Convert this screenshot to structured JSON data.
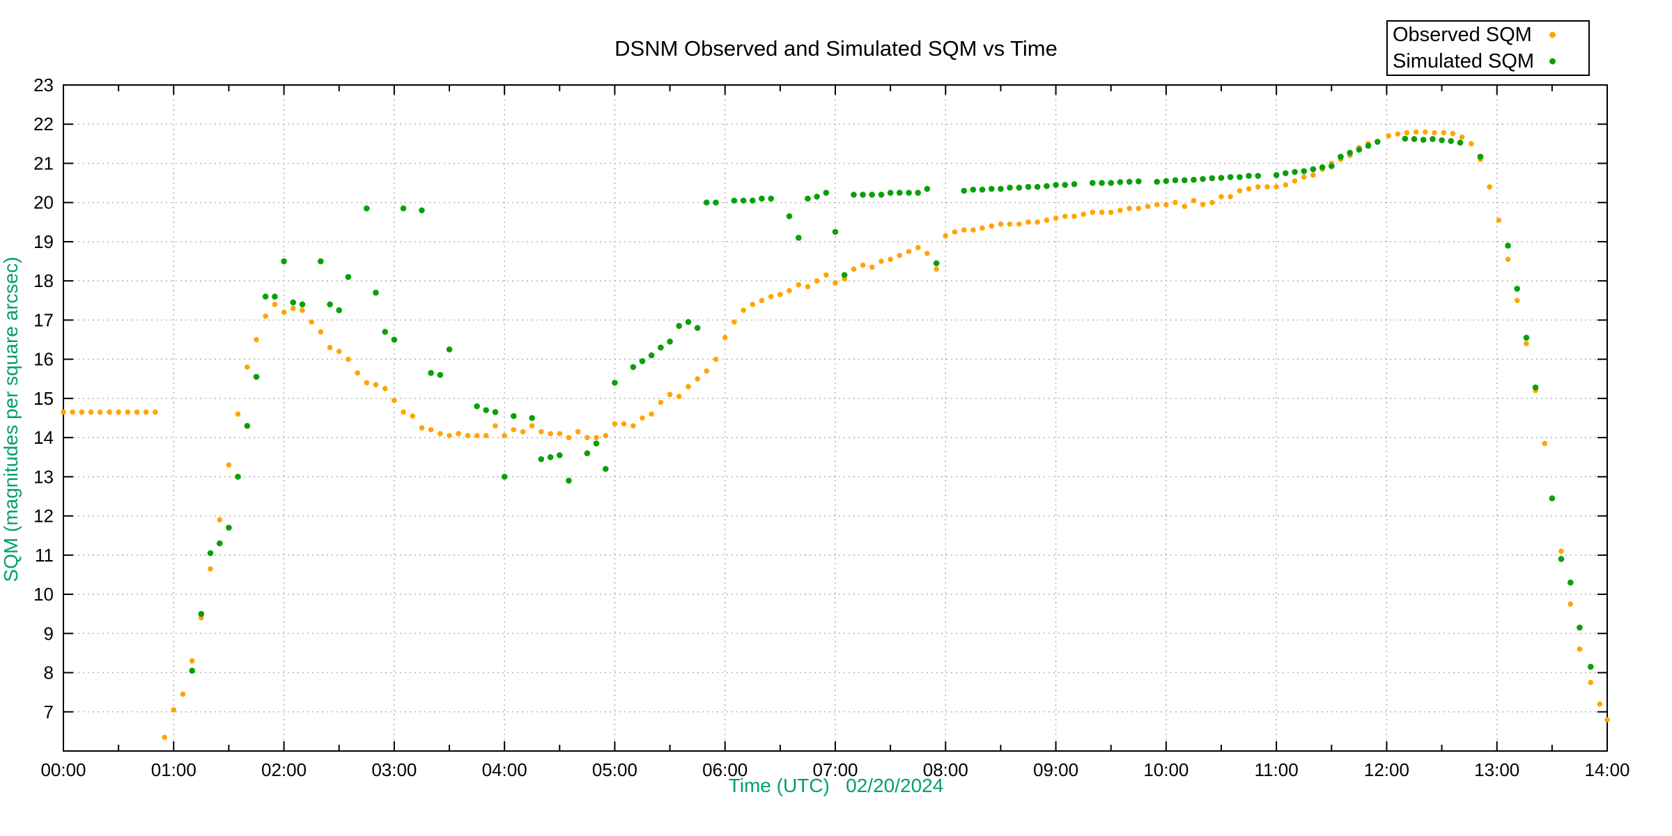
{
  "chart_data": {
    "type": "scatter",
    "title": "DSNM Observed and Simulated SQM vs Time",
    "xlabel": "Time (UTC)   02/20/2024",
    "ylabel": "SQM (magnitudes per square arcsec)",
    "axis_label_color": "#009e73",
    "tick_label_color": "#000000",
    "grid": true,
    "grid_color": "#b3b3b3",
    "xlim_hours": [
      0,
      14
    ],
    "ylim": [
      6,
      23
    ],
    "x_tick_labels": [
      "00:00",
      "01:00",
      "02:00",
      "03:00",
      "04:00",
      "05:00",
      "06:00",
      "07:00",
      "08:00",
      "09:00",
      "10:00",
      "11:00",
      "12:00",
      "13:00",
      "14:00"
    ],
    "x_minor_tick_hours": 0.5,
    "y_ticks": [
      7,
      8,
      9,
      10,
      11,
      12,
      13,
      14,
      15,
      16,
      17,
      18,
      19,
      20,
      21,
      22,
      23
    ],
    "legend_position": "top-right",
    "series": [
      {
        "name": "Observed SQM",
        "color": "#ffa500",
        "marker": "dot",
        "points": [
          [
            0.0,
            14.65
          ],
          [
            0.083,
            14.65
          ],
          [
            0.167,
            14.65
          ],
          [
            0.25,
            14.65
          ],
          [
            0.333,
            14.65
          ],
          [
            0.417,
            14.65
          ],
          [
            0.5,
            14.65
          ],
          [
            0.583,
            14.65
          ],
          [
            0.667,
            14.65
          ],
          [
            0.75,
            14.65
          ],
          [
            0.833,
            14.65
          ],
          [
            0.917,
            6.35
          ],
          [
            1.0,
            7.05
          ],
          [
            1.083,
            7.45
          ],
          [
            1.167,
            8.3
          ],
          [
            1.25,
            9.4
          ],
          [
            1.333,
            10.65
          ],
          [
            1.417,
            11.9
          ],
          [
            1.5,
            13.3
          ],
          [
            1.583,
            14.6
          ],
          [
            1.667,
            15.8
          ],
          [
            1.75,
            16.5
          ],
          [
            1.833,
            17.1
          ],
          [
            1.917,
            17.4
          ],
          [
            2.0,
            17.2
          ],
          [
            2.083,
            17.3
          ],
          [
            2.167,
            17.25
          ],
          [
            2.25,
            16.95
          ],
          [
            2.333,
            16.7
          ],
          [
            2.417,
            16.3
          ],
          [
            2.5,
            16.2
          ],
          [
            2.583,
            16.0
          ],
          [
            2.667,
            15.65
          ],
          [
            2.75,
            15.4
          ],
          [
            2.833,
            15.35
          ],
          [
            2.917,
            15.25
          ],
          [
            3.0,
            14.95
          ],
          [
            3.083,
            14.65
          ],
          [
            3.167,
            14.55
          ],
          [
            3.25,
            14.25
          ],
          [
            3.333,
            14.2
          ],
          [
            3.417,
            14.1
          ],
          [
            3.5,
            14.05
          ],
          [
            3.583,
            14.1
          ],
          [
            3.667,
            14.05
          ],
          [
            3.75,
            14.05
          ],
          [
            3.833,
            14.05
          ],
          [
            3.917,
            14.3
          ],
          [
            4.0,
            14.05
          ],
          [
            4.083,
            14.2
          ],
          [
            4.167,
            14.15
          ],
          [
            4.25,
            14.3
          ],
          [
            4.333,
            14.15
          ],
          [
            4.417,
            14.1
          ],
          [
            4.5,
            14.1
          ],
          [
            4.583,
            14.0
          ],
          [
            4.667,
            14.15
          ],
          [
            4.75,
            14.0
          ],
          [
            4.833,
            14.0
          ],
          [
            4.917,
            14.05
          ],
          [
            5.0,
            14.35
          ],
          [
            5.083,
            14.35
          ],
          [
            5.167,
            14.3
          ],
          [
            5.25,
            14.5
          ],
          [
            5.333,
            14.6
          ],
          [
            5.417,
            14.9
          ],
          [
            5.5,
            15.1
          ],
          [
            5.583,
            15.05
          ],
          [
            5.667,
            15.3
          ],
          [
            5.75,
            15.5
          ],
          [
            5.833,
            15.7
          ],
          [
            5.917,
            16.0
          ],
          [
            6.0,
            16.55
          ],
          [
            6.083,
            16.95
          ],
          [
            6.167,
            17.25
          ],
          [
            6.25,
            17.4
          ],
          [
            6.333,
            17.5
          ],
          [
            6.417,
            17.6
          ],
          [
            6.5,
            17.65
          ],
          [
            6.583,
            17.75
          ],
          [
            6.667,
            17.9
          ],
          [
            6.75,
            17.85
          ],
          [
            6.833,
            18.0
          ],
          [
            6.917,
            18.15
          ],
          [
            7.0,
            17.95
          ],
          [
            7.083,
            18.05
          ],
          [
            7.167,
            18.3
          ],
          [
            7.25,
            18.4
          ],
          [
            7.333,
            18.35
          ],
          [
            7.417,
            18.5
          ],
          [
            7.5,
            18.55
          ],
          [
            7.583,
            18.65
          ],
          [
            7.667,
            18.75
          ],
          [
            7.75,
            18.85
          ],
          [
            7.833,
            18.7
          ],
          [
            7.917,
            18.3
          ],
          [
            8.0,
            19.15
          ],
          [
            8.083,
            19.25
          ],
          [
            8.167,
            19.3
          ],
          [
            8.25,
            19.3
          ],
          [
            8.333,
            19.35
          ],
          [
            8.417,
            19.4
          ],
          [
            8.5,
            19.45
          ],
          [
            8.583,
            19.45
          ],
          [
            8.667,
            19.45
          ],
          [
            8.75,
            19.5
          ],
          [
            8.833,
            19.5
          ],
          [
            8.917,
            19.55
          ],
          [
            9.0,
            19.6
          ],
          [
            9.083,
            19.65
          ],
          [
            9.167,
            19.65
          ],
          [
            9.25,
            19.7
          ],
          [
            9.333,
            19.75
          ],
          [
            9.417,
            19.75
          ],
          [
            9.5,
            19.75
          ],
          [
            9.583,
            19.8
          ],
          [
            9.667,
            19.85
          ],
          [
            9.75,
            19.85
          ],
          [
            9.833,
            19.9
          ],
          [
            9.917,
            19.95
          ],
          [
            10.0,
            19.95
          ],
          [
            10.083,
            20.0
          ],
          [
            10.167,
            19.9
          ],
          [
            10.25,
            20.05
          ],
          [
            10.333,
            19.95
          ],
          [
            10.417,
            20.0
          ],
          [
            10.5,
            20.15
          ],
          [
            10.583,
            20.15
          ],
          [
            10.667,
            20.3
          ],
          [
            10.75,
            20.35
          ],
          [
            10.833,
            20.4
          ],
          [
            10.917,
            20.4
          ],
          [
            11.0,
            20.4
          ],
          [
            11.083,
            20.45
          ],
          [
            11.167,
            20.55
          ],
          [
            11.25,
            20.65
          ],
          [
            11.333,
            20.7
          ],
          [
            11.417,
            20.85
          ],
          [
            11.5,
            21.0
          ],
          [
            11.583,
            21.1
          ],
          [
            11.667,
            21.2
          ],
          [
            11.75,
            21.4
          ],
          [
            11.833,
            21.5
          ],
          [
            12.017,
            21.7
          ],
          [
            12.1,
            21.75
          ],
          [
            12.183,
            21.78
          ],
          [
            12.267,
            21.8
          ],
          [
            12.35,
            21.8
          ],
          [
            12.433,
            21.78
          ],
          [
            12.517,
            21.78
          ],
          [
            12.6,
            21.76
          ],
          [
            12.683,
            21.67
          ],
          [
            12.767,
            21.5
          ],
          [
            12.85,
            21.1
          ],
          [
            12.933,
            20.4
          ],
          [
            13.017,
            19.55
          ],
          [
            13.1,
            18.55
          ],
          [
            13.183,
            17.5
          ],
          [
            13.267,
            16.4
          ],
          [
            13.35,
            15.2
          ],
          [
            13.433,
            13.85
          ],
          [
            13.583,
            11.1
          ],
          [
            13.667,
            9.75
          ],
          [
            13.75,
            8.6
          ],
          [
            13.85,
            7.75
          ],
          [
            13.933,
            7.2
          ],
          [
            14.0,
            6.8
          ]
        ]
      },
      {
        "name": "Simulated SQM",
        "color": "#0aa00a",
        "marker": "dot",
        "points": [
          [
            1.167,
            8.05
          ],
          [
            1.25,
            9.5
          ],
          [
            1.333,
            11.05
          ],
          [
            1.417,
            11.3
          ],
          [
            1.5,
            11.7
          ],
          [
            1.583,
            13.0
          ],
          [
            1.667,
            14.3
          ],
          [
            1.75,
            15.55
          ],
          [
            1.833,
            17.6
          ],
          [
            1.917,
            17.6
          ],
          [
            2.0,
            18.5
          ],
          [
            2.083,
            17.45
          ],
          [
            2.167,
            17.4
          ],
          [
            2.333,
            18.5
          ],
          [
            2.417,
            17.4
          ],
          [
            2.5,
            17.25
          ],
          [
            2.583,
            18.1
          ],
          [
            2.75,
            19.85
          ],
          [
            2.833,
            17.7
          ],
          [
            2.917,
            16.7
          ],
          [
            3.0,
            16.5
          ],
          [
            3.083,
            19.85
          ],
          [
            3.25,
            19.8
          ],
          [
            3.333,
            15.65
          ],
          [
            3.417,
            15.6
          ],
          [
            3.5,
            16.25
          ],
          [
            3.75,
            14.8
          ],
          [
            3.833,
            14.7
          ],
          [
            3.917,
            14.65
          ],
          [
            4.0,
            13.0
          ],
          [
            4.083,
            14.55
          ],
          [
            4.25,
            14.5
          ],
          [
            4.333,
            13.45
          ],
          [
            4.417,
            13.5
          ],
          [
            4.5,
            13.55
          ],
          [
            4.583,
            12.9
          ],
          [
            4.75,
            13.6
          ],
          [
            4.833,
            13.85
          ],
          [
            4.917,
            13.2
          ],
          [
            5.0,
            15.4
          ],
          [
            5.167,
            15.8
          ],
          [
            5.25,
            15.95
          ],
          [
            5.333,
            16.1
          ],
          [
            5.417,
            16.3
          ],
          [
            5.5,
            16.45
          ],
          [
            5.583,
            16.85
          ],
          [
            5.667,
            16.95
          ],
          [
            5.75,
            16.8
          ],
          [
            5.833,
            20.0
          ],
          [
            5.917,
            20.0
          ],
          [
            6.083,
            20.05
          ],
          [
            6.167,
            20.05
          ],
          [
            6.25,
            20.05
          ],
          [
            6.333,
            20.1
          ],
          [
            6.417,
            20.1
          ],
          [
            6.583,
            19.65
          ],
          [
            6.667,
            19.1
          ],
          [
            6.75,
            20.1
          ],
          [
            6.833,
            20.15
          ],
          [
            6.917,
            20.25
          ],
          [
            7.0,
            19.25
          ],
          [
            7.083,
            18.15
          ],
          [
            7.167,
            20.2
          ],
          [
            7.25,
            20.2
          ],
          [
            7.333,
            20.2
          ],
          [
            7.417,
            20.2
          ],
          [
            7.5,
            20.25
          ],
          [
            7.583,
            20.25
          ],
          [
            7.667,
            20.25
          ],
          [
            7.75,
            20.25
          ],
          [
            7.833,
            20.35
          ],
          [
            7.917,
            18.45
          ],
          [
            8.167,
            20.3
          ],
          [
            8.25,
            20.33
          ],
          [
            8.333,
            20.33
          ],
          [
            8.417,
            20.35
          ],
          [
            8.5,
            20.35
          ],
          [
            8.583,
            20.38
          ],
          [
            8.667,
            20.38
          ],
          [
            8.75,
            20.4
          ],
          [
            8.833,
            20.4
          ],
          [
            8.917,
            20.42
          ],
          [
            9.0,
            20.45
          ],
          [
            9.083,
            20.45
          ],
          [
            9.167,
            20.47
          ],
          [
            9.333,
            20.5
          ],
          [
            9.417,
            20.5
          ],
          [
            9.5,
            20.5
          ],
          [
            9.583,
            20.52
          ],
          [
            9.667,
            20.53
          ],
          [
            9.75,
            20.54
          ],
          [
            9.917,
            20.53
          ],
          [
            10.0,
            20.55
          ],
          [
            10.083,
            20.57
          ],
          [
            10.167,
            20.57
          ],
          [
            10.25,
            20.58
          ],
          [
            10.333,
            20.6
          ],
          [
            10.417,
            20.62
          ],
          [
            10.5,
            20.63
          ],
          [
            10.583,
            20.65
          ],
          [
            10.667,
            20.65
          ],
          [
            10.75,
            20.68
          ],
          [
            10.833,
            20.68
          ],
          [
            11.0,
            20.7
          ],
          [
            11.083,
            20.75
          ],
          [
            11.167,
            20.78
          ],
          [
            11.25,
            20.8
          ],
          [
            11.333,
            20.85
          ],
          [
            11.417,
            20.9
          ],
          [
            11.5,
            20.93
          ],
          [
            11.583,
            21.17
          ],
          [
            11.667,
            21.27
          ],
          [
            11.75,
            21.35
          ],
          [
            11.833,
            21.45
          ],
          [
            11.917,
            21.55
          ],
          [
            12.167,
            21.63
          ],
          [
            12.25,
            21.62
          ],
          [
            12.333,
            21.6
          ],
          [
            12.417,
            21.62
          ],
          [
            12.5,
            21.59
          ],
          [
            12.583,
            21.57
          ],
          [
            12.667,
            21.53
          ],
          [
            12.85,
            21.17
          ],
          [
            13.1,
            18.9
          ],
          [
            13.183,
            17.8
          ],
          [
            13.267,
            16.55
          ],
          [
            13.35,
            15.28
          ],
          [
            13.5,
            12.45
          ],
          [
            13.583,
            10.9
          ],
          [
            13.667,
            10.3
          ],
          [
            13.75,
            9.15
          ],
          [
            13.85,
            8.15
          ]
        ]
      }
    ]
  }
}
